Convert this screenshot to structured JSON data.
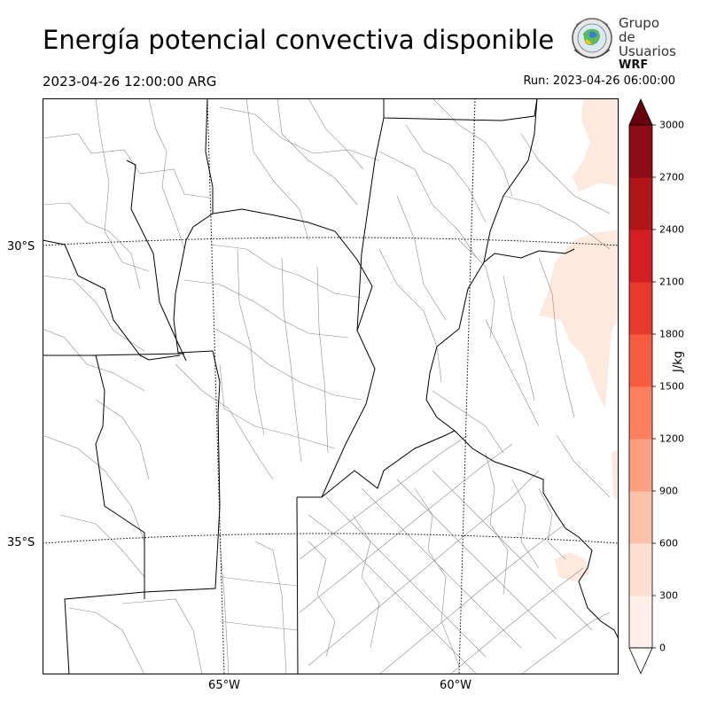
{
  "header": {
    "title": "Energía potencial convectiva disponible",
    "valid_time": "2023-04-26 12:00:00 ARG",
    "run_time": "Run: 2023-04-26 06:00:00"
  },
  "logo": {
    "line1": "Grupo de",
    "line2": "Usuarios",
    "line3": "WRF"
  },
  "map": {
    "lat_labels": [
      "30°S",
      "35°S"
    ],
    "lon_labels": [
      "65°W",
      "60°W"
    ],
    "land_color": "#ffffff",
    "border_color": "#000000",
    "department_color": "#8c8c8c"
  },
  "colorbar": {
    "unit": "J/kg",
    "ticks": [
      "0",
      "300",
      "600",
      "900",
      "1200",
      "1500",
      "1800",
      "2100",
      "2400",
      "2700",
      "3000"
    ],
    "colors": [
      "#fff0e9",
      "#fee0d2",
      "#fcc2a9",
      "#fca082",
      "#fb7f5c",
      "#f65c3f",
      "#e8392f",
      "#d21f21",
      "#b01518",
      "#8d0b14"
    ],
    "under_color": "#ffffff",
    "over_color": "#67000d"
  }
}
